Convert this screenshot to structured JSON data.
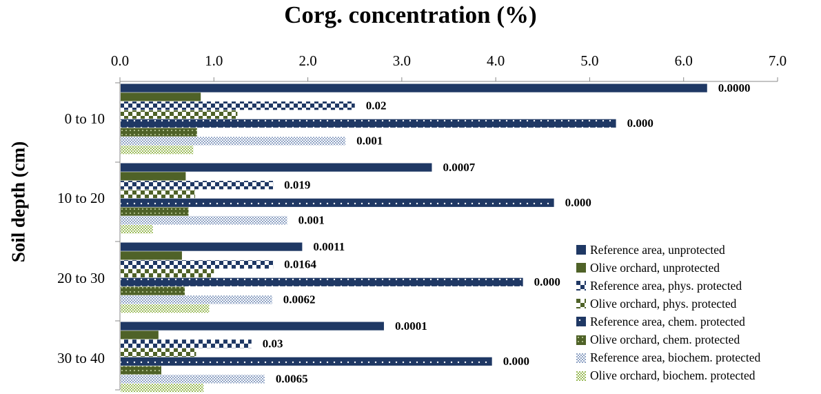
{
  "chart_data": {
    "type": "bar",
    "orientation": "horizontal",
    "title": "Corg. concentration (%)",
    "xlabel": "Corg. concentration (%)",
    "ylabel": "Soil depth (cm)",
    "xlim": [
      0,
      7
    ],
    "x_ticks": [
      "0.0",
      "1.0",
      "2.0",
      "3.0",
      "4.0",
      "5.0",
      "6.0",
      "7.0"
    ],
    "x_axis_position": "top",
    "legend_position": "bottom-right",
    "grid": false,
    "categories": [
      "0 to  10",
      "10 to  20",
      "20 to  30",
      "30 to  40"
    ],
    "series": [
      {
        "name": "Reference area, unprotected",
        "color": "#1f3864",
        "pattern": "solid",
        "values": [
          6.25,
          3.32,
          1.94,
          2.81
        ],
        "labels": [
          "0.0000",
          "0.0007",
          "0.0011",
          "0.0001"
        ]
      },
      {
        "name": "Olive orchard, unprotected",
        "color": "#4f6228",
        "pattern": "solid",
        "values": [
          0.86,
          0.7,
          0.66,
          0.41
        ],
        "labels": [
          "",
          "",
          "",
          ""
        ]
      },
      {
        "name": "Reference area, phys. protected",
        "color": "#1f3864",
        "pattern": "checker",
        "values": [
          2.5,
          1.63,
          1.63,
          1.4
        ],
        "labels": [
          "0.02",
          "0.019",
          "0.0164",
          "0.03"
        ]
      },
      {
        "name": "Olive orchard, phys. protected",
        "color": "#4f6228",
        "pattern": "checker",
        "values": [
          1.25,
          0.8,
          1.0,
          0.81
        ],
        "labels": [
          "",
          "",
          "",
          ""
        ]
      },
      {
        "name": "Reference area, chem. protected",
        "color": "#1f3864",
        "pattern": "dots",
        "values": [
          5.28,
          4.62,
          4.29,
          3.96
        ],
        "labels": [
          "0.000",
          "0.000",
          "0.000",
          "0.000"
        ]
      },
      {
        "name": "Olive orchard, chem. protected",
        "color": "#4f6228",
        "pattern": "dots",
        "values": [
          0.82,
          0.73,
          0.69,
          0.44
        ],
        "labels": [
          "",
          "",
          "",
          ""
        ]
      },
      {
        "name": "Reference area, biochem. protected",
        "color": "#8ea2c4",
        "pattern": "crosshatch",
        "values": [
          2.4,
          1.78,
          1.62,
          1.54
        ],
        "labels": [
          "0.001",
          "0.001",
          "0.0062",
          "0.0065"
        ]
      },
      {
        "name": "Olive orchard, biochem. protected",
        "color": "#9bbb59",
        "pattern": "crosshatch",
        "values": [
          0.78,
          0.35,
          0.95,
          0.89
        ],
        "labels": [
          "",
          "",
          "",
          ""
        ]
      }
    ]
  }
}
